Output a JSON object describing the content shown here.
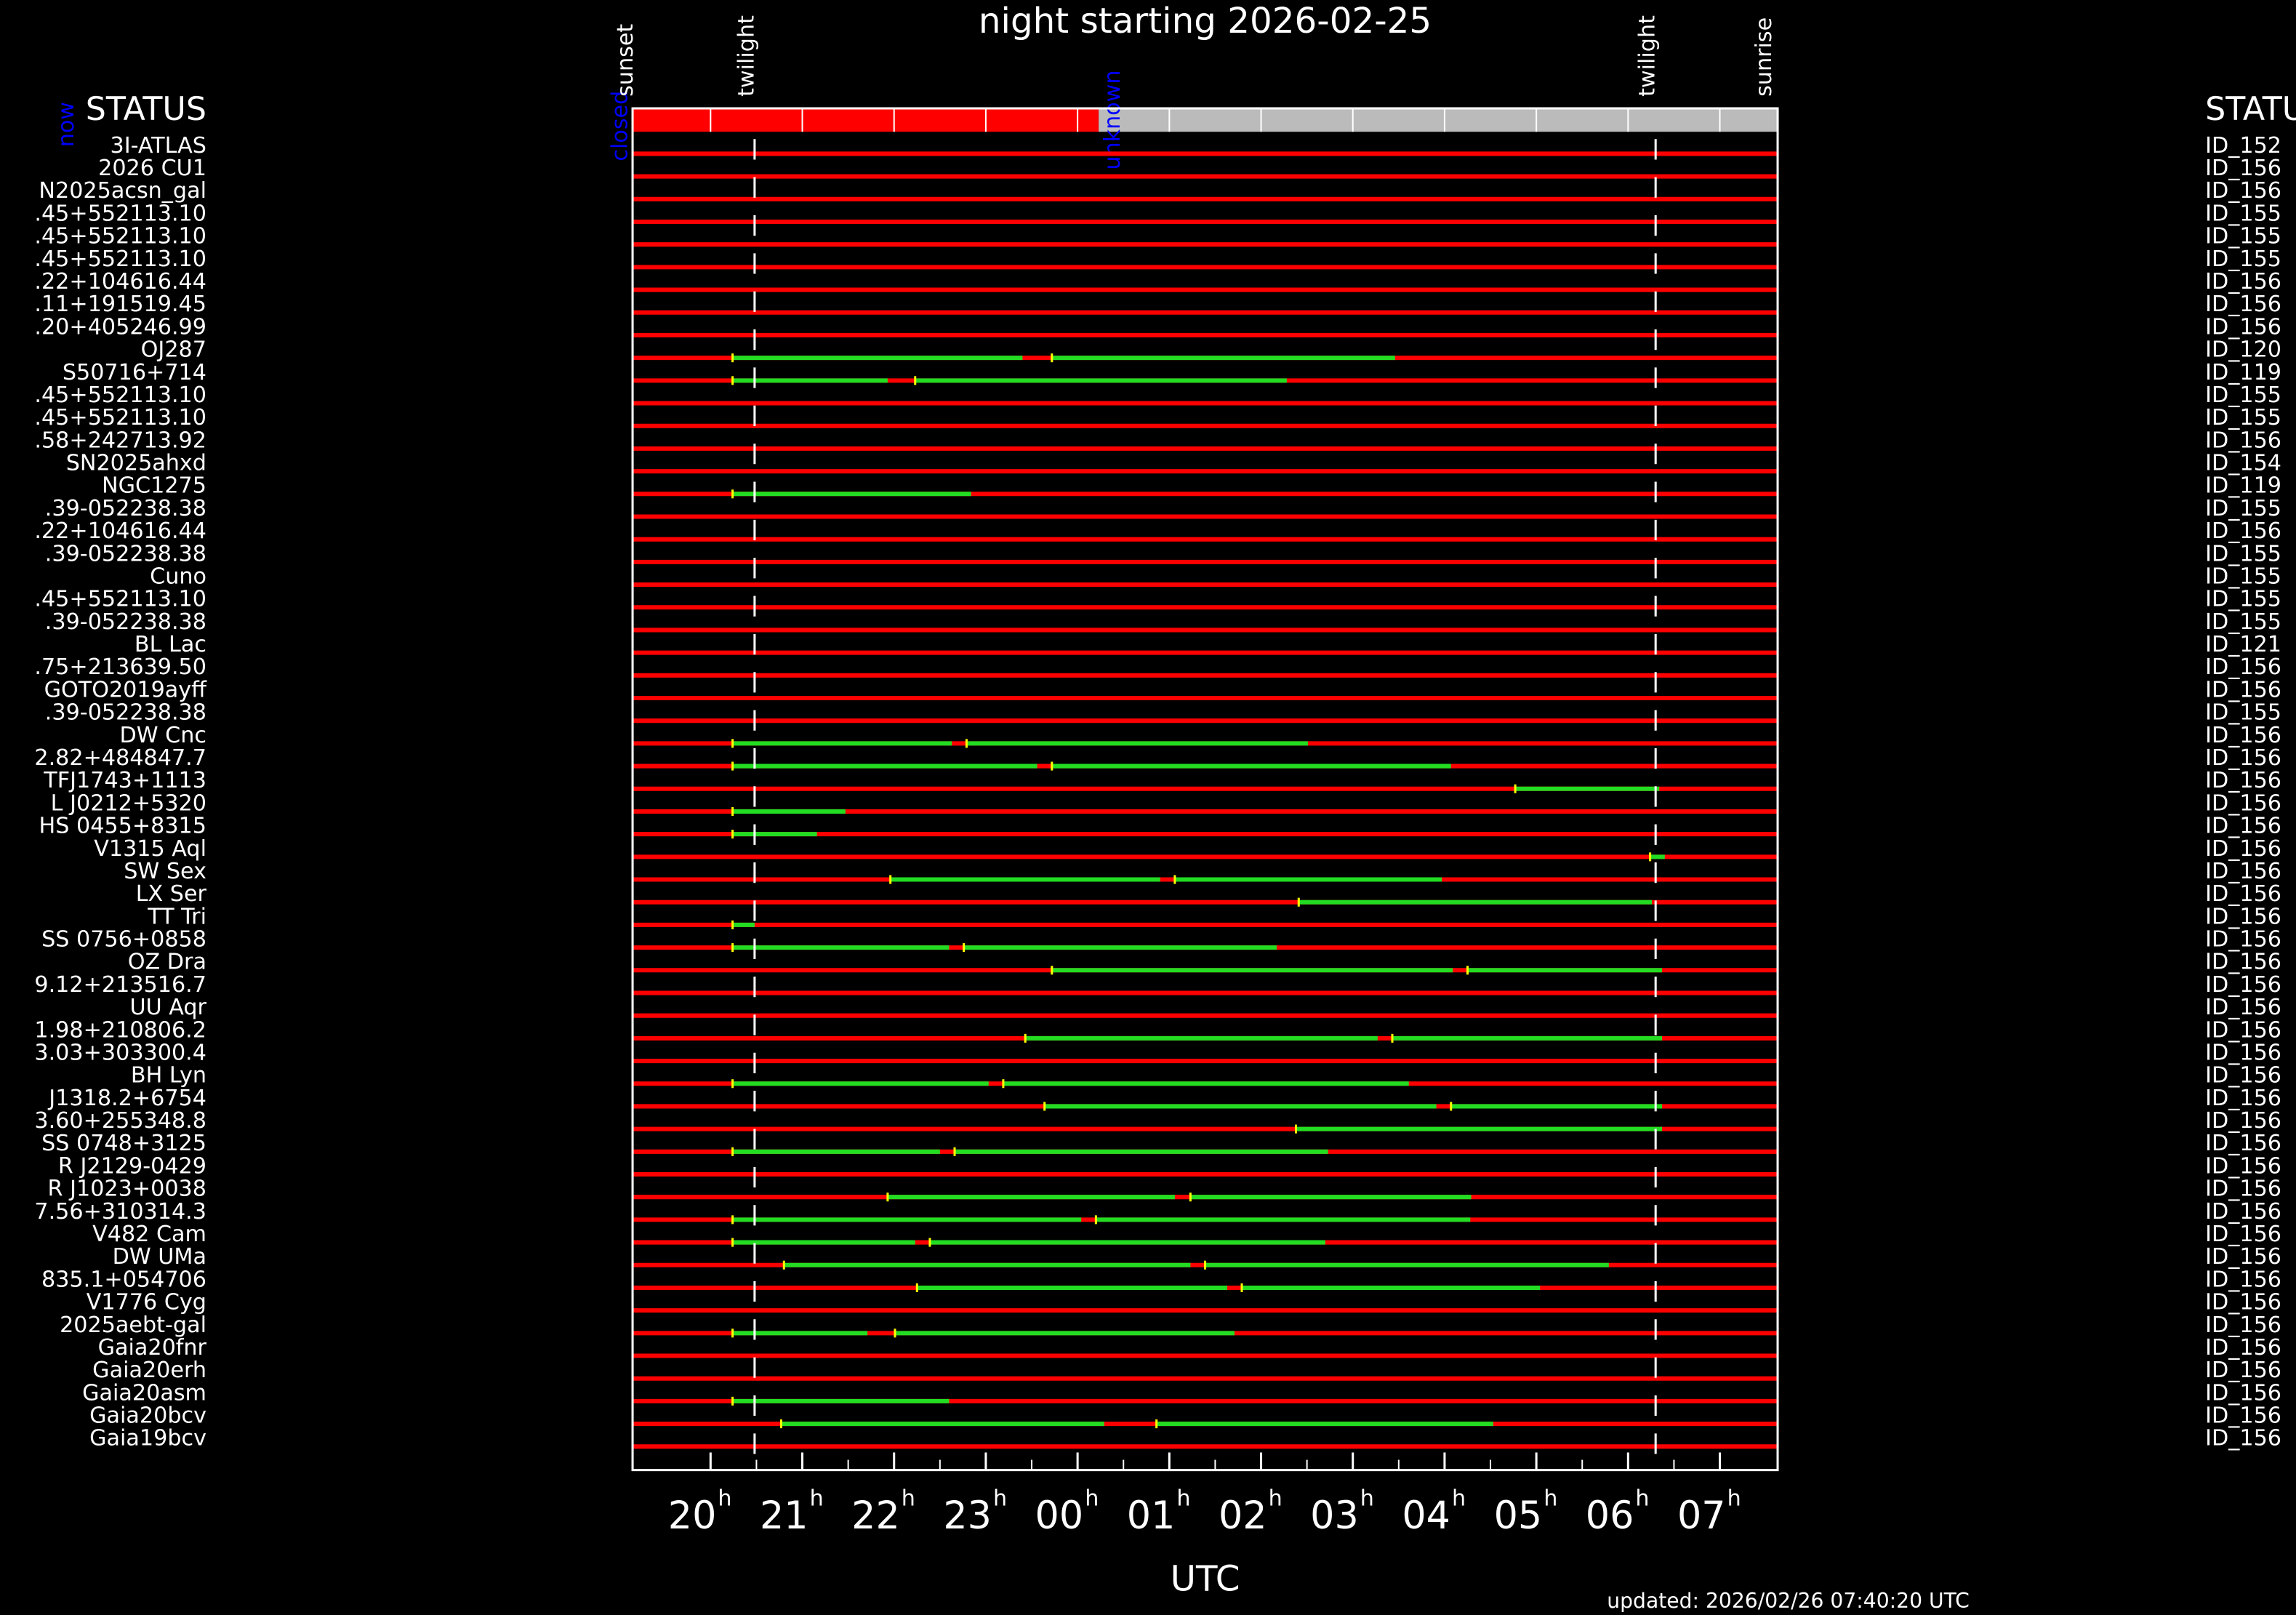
{
  "chart_data": {
    "type": "timeline",
    "title": "night starting 2026-02-25",
    "left_header": "STATUS",
    "right_header": "STATU",
    "now_label": "now",
    "updated": "updated: 2026/02/26 07:40:20 UTC",
    "xlabel": "UTC",
    "x_tick_suffix": "h",
    "xlim": [
      19.15,
      31.63
    ],
    "xticks": [
      {
        "value": 20,
        "label": "20"
      },
      {
        "value": 21,
        "label": "21"
      },
      {
        "value": 22,
        "label": "22"
      },
      {
        "value": 23,
        "label": "23"
      },
      {
        "value": 24,
        "label": "00"
      },
      {
        "value": 25,
        "label": "01"
      },
      {
        "value": 26,
        "label": "02"
      },
      {
        "value": 27,
        "label": "03"
      },
      {
        "value": 28,
        "label": "04"
      },
      {
        "value": 29,
        "label": "05"
      },
      {
        "value": 30,
        "label": "06"
      },
      {
        "value": 31,
        "label": "07"
      }
    ],
    "events": [
      {
        "label": "sunset",
        "value": 19.16,
        "dashed": false
      },
      {
        "label": "twilight",
        "value": 20.48,
        "dashed": true
      },
      {
        "label": "twilight",
        "value": 30.3,
        "dashed": true
      },
      {
        "label": "sunrise",
        "value": 31.57,
        "dashed": false
      }
    ],
    "status": [
      {
        "label": "closed",
        "start": 19.15,
        "end": 24.23,
        "color": "#ff0000",
        "label_color": "#0000ff"
      },
      {
        "label": "unknown",
        "start": 24.23,
        "end": 31.63,
        "color": "#bbbbbb",
        "label_color": "#0000ff"
      }
    ],
    "row_color": "#ff0000",
    "window_color": "#22dd22",
    "rows": [
      {
        "name": "3I-ATLAS",
        "id": "ID_152",
        "windows": []
      },
      {
        "name": "2026 CU1",
        "id": "ID_156",
        "windows": []
      },
      {
        "name": "N2025acsn_gal",
        "id": "ID_156",
        "windows": []
      },
      {
        "name": ".45+552113.10",
        "id": "ID_155",
        "windows": []
      },
      {
        "name": ".45+552113.10",
        "id": "ID_155",
        "windows": []
      },
      {
        "name": ".45+552113.10",
        "id": "ID_155",
        "windows": []
      },
      {
        "name": ".22+104616.44",
        "id": "ID_156",
        "windows": []
      },
      {
        "name": ".11+191519.45",
        "id": "ID_156",
        "windows": []
      },
      {
        "name": ".20+405246.99",
        "id": "ID_156",
        "windows": []
      },
      {
        "name": "OJ287",
        "id": "ID_120",
        "windows": [
          [
            20.24,
            23.4
          ],
          [
            23.72,
            27.46
          ]
        ]
      },
      {
        "name": "S50716+714",
        "id": "ID_119",
        "windows": [
          [
            20.24,
            21.93
          ],
          [
            22.23,
            26.28
          ]
        ]
      },
      {
        "name": ".45+552113.10",
        "id": "ID_155",
        "windows": []
      },
      {
        "name": ".45+552113.10",
        "id": "ID_155",
        "windows": []
      },
      {
        "name": ".58+242713.92",
        "id": "ID_156",
        "windows": []
      },
      {
        "name": "SN2025ahxd",
        "id": "ID_154",
        "windows": []
      },
      {
        "name": "NGC1275",
        "id": "ID_119",
        "windows": [
          [
            20.24,
            22.84
          ]
        ]
      },
      {
        "name": ".39-052238.38",
        "id": "ID_155",
        "windows": []
      },
      {
        "name": ".22+104616.44",
        "id": "ID_156",
        "windows": []
      },
      {
        "name": ".39-052238.38",
        "id": "ID_155",
        "windows": []
      },
      {
        "name": "Cuno",
        "id": "ID_155",
        "windows": []
      },
      {
        "name": ".45+552113.10",
        "id": "ID_155",
        "windows": []
      },
      {
        "name": ".39-052238.38",
        "id": "ID_155",
        "windows": []
      },
      {
        "name": "BL Lac",
        "id": "ID_121",
        "windows": []
      },
      {
        "name": ".75+213639.50",
        "id": "ID_156",
        "windows": []
      },
      {
        "name": "GOTO2019ayff",
        "id": "ID_156",
        "windows": []
      },
      {
        "name": ".39-052238.38",
        "id": "ID_155",
        "windows": []
      },
      {
        "name": "DW Cnc",
        "id": "ID_156",
        "windows": [
          [
            20.24,
            22.63
          ],
          [
            22.79,
            26.51
          ]
        ]
      },
      {
        "name": "2.82+484847.7",
        "id": "ID_156",
        "windows": [
          [
            20.24,
            23.56
          ],
          [
            23.72,
            28.07
          ]
        ]
      },
      {
        "name": "TFJ1743+1113",
        "id": "ID_156",
        "windows": [
          [
            28.77,
            30.34
          ]
        ]
      },
      {
        "name": "L J0212+5320",
        "id": "ID_156",
        "windows": [
          [
            20.24,
            21.47
          ]
        ]
      },
      {
        "name": "HS 0455+8315",
        "id": "ID_156",
        "windows": [
          [
            20.24,
            21.16
          ]
        ]
      },
      {
        "name": "V1315 Aql",
        "id": "ID_156",
        "windows": [
          [
            30.24,
            30.4
          ]
        ]
      },
      {
        "name": "SW Sex",
        "id": "ID_156",
        "windows": [
          [
            21.96,
            24.9
          ],
          [
            25.06,
            27.97
          ]
        ]
      },
      {
        "name": "LX Ser",
        "id": "ID_156",
        "windows": [
          [
            26.41,
            30.26
          ]
        ]
      },
      {
        "name": "TT Tri",
        "id": "ID_156",
        "windows": [
          [
            20.24,
            20.48
          ]
        ]
      },
      {
        "name": "SS 0756+0858",
        "id": "ID_156",
        "windows": [
          [
            20.24,
            22.6
          ],
          [
            22.76,
            26.17
          ]
        ]
      },
      {
        "name": "OZ Dra",
        "id": "ID_156",
        "windows": [
          [
            23.72,
            28.09
          ],
          [
            28.25,
            30.37
          ]
        ]
      },
      {
        "name": "9.12+213516.7",
        "id": "ID_156",
        "windows": []
      },
      {
        "name": "UU Aqr",
        "id": "ID_156",
        "windows": []
      },
      {
        "name": "1.98+210806.2",
        "id": "ID_156",
        "windows": [
          [
            23.43,
            27.27
          ],
          [
            27.43,
            30.37
          ]
        ]
      },
      {
        "name": "3.03+303300.4",
        "id": "ID_156",
        "windows": []
      },
      {
        "name": "BH Lyn",
        "id": "ID_156",
        "windows": [
          [
            20.24,
            23.03
          ],
          [
            23.19,
            27.61
          ]
        ]
      },
      {
        "name": "J1318.2+6754",
        "id": "ID_156",
        "windows": [
          [
            23.64,
            27.91
          ],
          [
            28.07,
            30.37
          ]
        ]
      },
      {
        "name": "3.60+255348.8",
        "id": "ID_156",
        "windows": [
          [
            26.38,
            30.37
          ]
        ]
      },
      {
        "name": "SS 0748+3125",
        "id": "ID_156",
        "windows": [
          [
            20.24,
            22.5
          ],
          [
            22.66,
            26.73
          ]
        ]
      },
      {
        "name": "R J2129-0429",
        "id": "ID_156",
        "windows": []
      },
      {
        "name": "R J1023+0038",
        "id": "ID_156",
        "windows": [
          [
            21.93,
            25.06
          ],
          [
            25.23,
            28.29
          ]
        ]
      },
      {
        "name": "7.56+310314.3",
        "id": "ID_156",
        "windows": [
          [
            20.24,
            24.04
          ],
          [
            24.2,
            28.28
          ]
        ]
      },
      {
        "name": "V482 Cam",
        "id": "ID_156",
        "windows": [
          [
            20.24,
            22.23
          ],
          [
            22.39,
            26.7
          ]
        ]
      },
      {
        "name": "DW UMa",
        "id": "ID_156",
        "windows": [
          [
            20.8,
            25.23
          ],
          [
            25.39,
            29.79
          ]
        ]
      },
      {
        "name": "835.1+054706",
        "id": "ID_156",
        "windows": [
          [
            22.25,
            25.63
          ],
          [
            25.79,
            29.04
          ]
        ]
      },
      {
        "name": "V1776 Cyg",
        "id": "ID_156",
        "windows": []
      },
      {
        "name": "2025aebt-gal",
        "id": "ID_156",
        "windows": [
          [
            20.24,
            21.71
          ],
          [
            22.01,
            25.71
          ]
        ]
      },
      {
        "name": "Gaia20fnr",
        "id": "ID_156",
        "windows": []
      },
      {
        "name": "Gaia20erh",
        "id": "ID_156",
        "windows": []
      },
      {
        "name": "Gaia20asm",
        "id": "ID_156",
        "windows": [
          [
            20.24,
            22.6
          ]
        ]
      },
      {
        "name": "Gaia20bcv",
        "id": "ID_156",
        "windows": [
          [
            20.77,
            24.29
          ],
          [
            24.86,
            28.53
          ]
        ]
      },
      {
        "name": "Gaia19bcv",
        "id": "ID_156",
        "windows": []
      }
    ]
  }
}
